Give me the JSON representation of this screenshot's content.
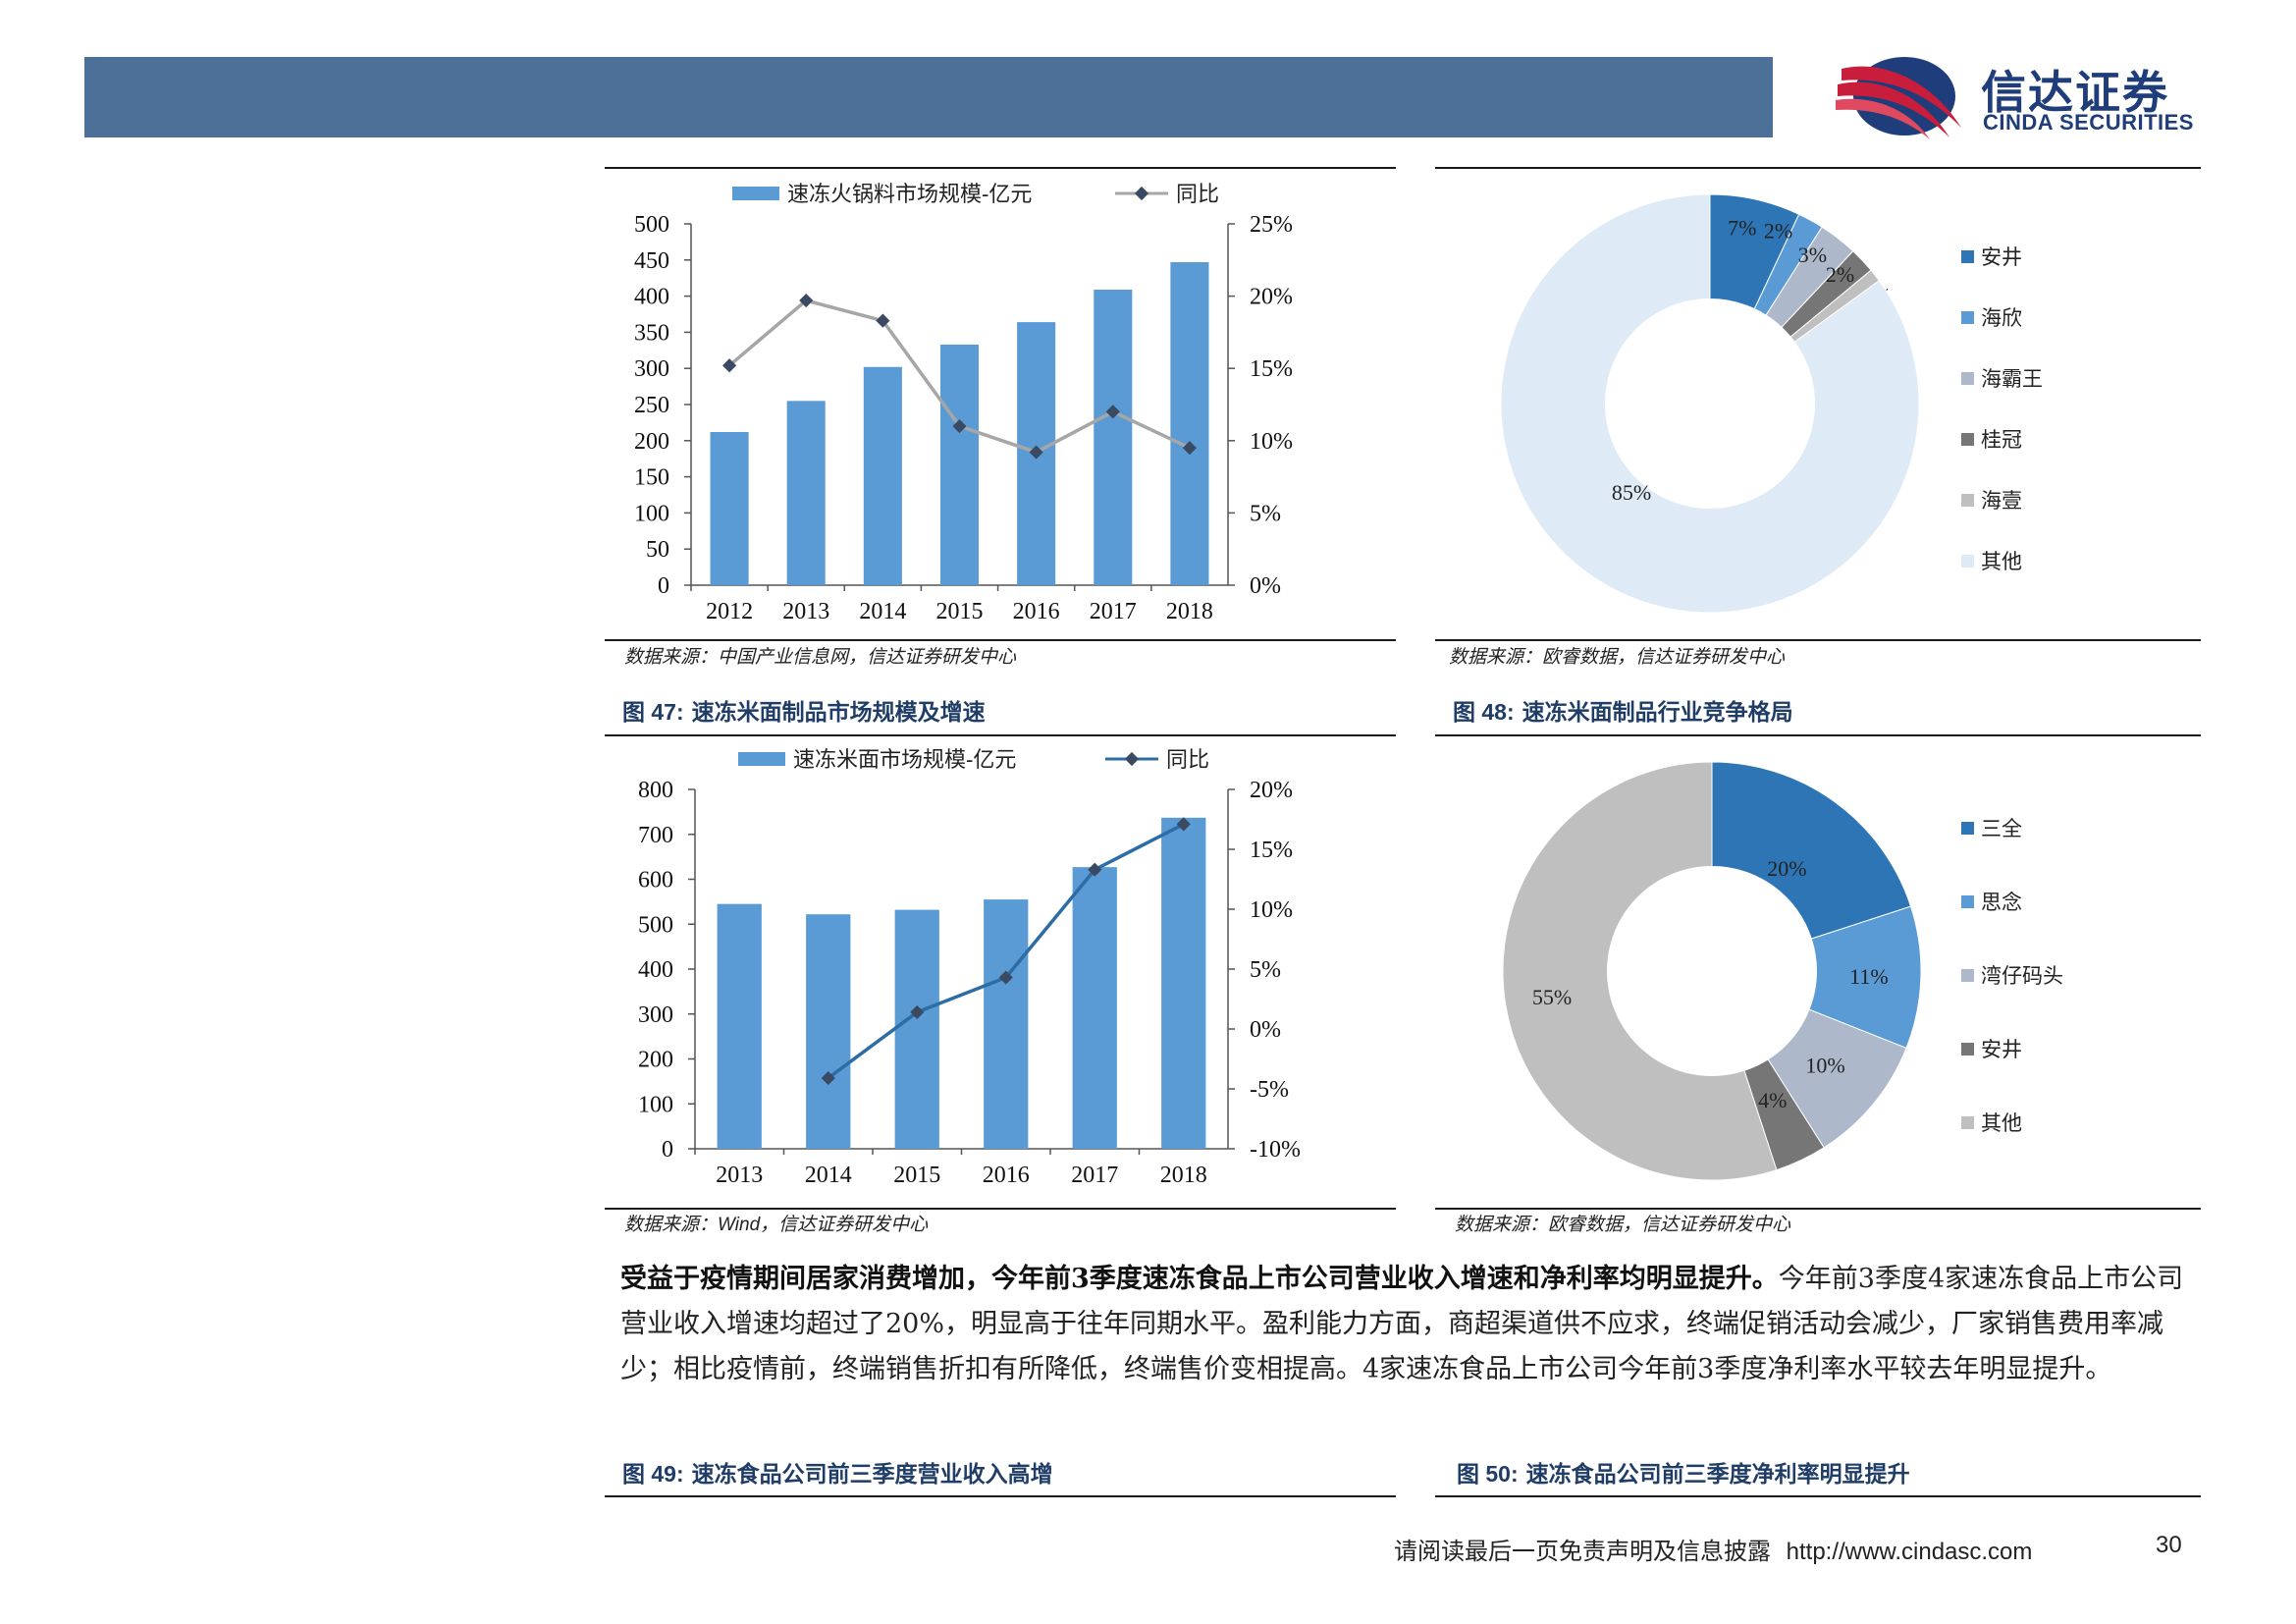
{
  "header": {
    "logo_cn": "信达证券",
    "logo_en": "CINDA SECURITIES",
    "bar_color": "#4d7098",
    "logo_colors": [
      "#c81e3c",
      "#1f3d7a"
    ]
  },
  "charts": {
    "hotpot": {
      "chart_data": {
        "type": "bar",
        "categories": [
          "2012",
          "2013",
          "2014",
          "2015",
          "2016",
          "2017",
          "2018"
        ],
        "series": [
          {
            "name": "速冻火锅料市场规模-亿元",
            "type": "bar",
            "axis": "left",
            "values": [
              212,
              255,
              302,
              333,
              364,
              409,
              447
            ],
            "color": "#5b9bd5"
          },
          {
            "name": "同比",
            "type": "line",
            "axis": "right",
            "values": [
              15.2,
              19.7,
              18.3,
              11.0,
              9.2,
              12.0,
              9.5
            ],
            "color": "#a6a6a6"
          }
        ],
        "ylim": [
          0,
          500
        ],
        "yticks": [
          "500",
          "450",
          "400",
          "350",
          "300",
          "250",
          "200",
          "150",
          "100",
          "50",
          "0"
        ],
        "y2lim": [
          0,
          25
        ],
        "y2ticks": [
          "25%",
          "20%",
          "15%",
          "10%",
          "5%",
          "0%"
        ]
      }
    },
    "share1": {
      "chart_data": {
        "type": "pie",
        "donut": true,
        "labels": [
          "安井",
          "海欣",
          "海霸王",
          "桂冠",
          "海壹",
          "其他"
        ],
        "values": [
          7,
          2,
          3,
          2,
          1,
          85
        ],
        "value_labels": [
          "7%",
          "2%",
          "3%",
          "2%",
          "1%",
          "85%"
        ],
        "colors": [
          "#2e75b6",
          "#5b9bd5",
          "#adb9ca",
          "#767676",
          "#bfbfbf",
          "#deebf7"
        ]
      }
    },
    "noodle": {
      "chart_data": {
        "type": "bar",
        "categories": [
          "2013",
          "2014",
          "2015",
          "2016",
          "2017",
          "2018"
        ],
        "series": [
          {
            "name": "速冻米面市场规模-亿元",
            "type": "bar",
            "axis": "left",
            "values": [
              545,
              522,
              532,
              555,
              627,
              737
            ],
            "color": "#5b9bd5"
          },
          {
            "name": "同比",
            "type": "line",
            "axis": "right",
            "values": [
              null,
              -4.1,
              1.4,
              4.3,
              13.3,
              17.1
            ],
            "color": "#2e6da4"
          }
        ],
        "ylim": [
          0,
          800
        ],
        "yticks": [
          "800",
          "700",
          "600",
          "500",
          "400",
          "300",
          "200",
          "100",
          "0"
        ],
        "y2lim": [
          -10,
          20
        ],
        "y2ticks": [
          "20%",
          "15%",
          "10%",
          "5%",
          "0%",
          "-5%",
          "-10%"
        ]
      }
    },
    "share2": {
      "chart_data": {
        "type": "pie",
        "donut": true,
        "labels": [
          "三全",
          "思念",
          "湾仔码头",
          "安井",
          "其他"
        ],
        "values": [
          20,
          11,
          10,
          4,
          55
        ],
        "value_labels": [
          "20%",
          "11%",
          "10%",
          "4%",
          "55%"
        ],
        "colors": [
          "#2e75b6",
          "#5b9bd5",
          "#adb9ca",
          "#767676",
          "#bfbfbf"
        ]
      }
    }
  },
  "sources": {
    "s47": "数据来源：中国产业信息网，信达证券研发中心",
    "s48": "数据来源：欧睿数据，信达证券研发中心",
    "s49_pre": "数据来源：",
    "s49_wind": "Wind",
    "s49_post": "，信达证券研发中心",
    "s50": "数据来源：欧睿数据，信达证券研发中心"
  },
  "figures": {
    "f47_num": "图 47:",
    "f47_title": "速冻米面制品市场规模及增速",
    "f48_num": "图 48:",
    "f48_title": "速冻米面制品行业竞争格局",
    "f49_num": "图 49:",
    "f49_title": "速冻食品公司前三季度营业收入高增",
    "f50_num": "图 50:",
    "f50_title": "速冻食品公司前三季度净利率明显提升"
  },
  "paragraph": {
    "bold": "受益于疫情期间居家消费增加，今年前3季度速冻食品上市公司营业收入增速和净利率均明显提升。",
    "normal": "今年前3季度4家速冻食品上市公司营业收入增速均超过了20%，明显高于往年同期水平。盈利能力方面，商超渠道供不应求，终端促销活动会减少，厂家销售费用率减少；相比疫情前，终端销售折扣有所降低，终端售价变相提高。4家速冻食品上市公司今年前3季度净利率水平较去年明显提升。"
  },
  "footer": {
    "disclaimer": "请阅读最后一页免责声明及信息披露",
    "url": "http://www.cindasc.com",
    "page": "30"
  }
}
